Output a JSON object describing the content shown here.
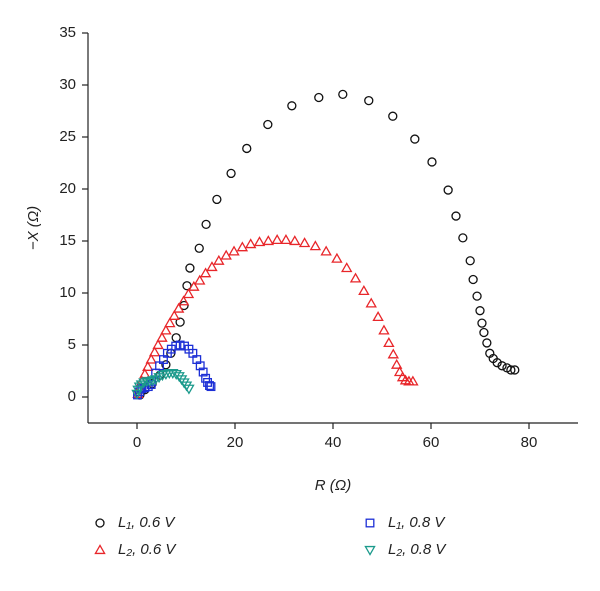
{
  "chart_data": {
    "type": "scatter",
    "xlabel": "R (Ω)",
    "ylabel": "−X (Ω)",
    "xlim": [
      -10,
      90
    ],
    "ylim": [
      -2.5,
      35
    ],
    "xticks": [
      0,
      20,
      40,
      60,
      80
    ],
    "yticks": [
      0,
      5,
      10,
      15,
      20,
      25,
      30,
      35
    ],
    "grid": false,
    "legend": "bottom",
    "series": [
      {
        "name": "L₁, 0.6 V",
        "color": "#111111",
        "marker": "circle",
        "x": [
          0.6,
          1.6,
          3.1,
          4.7,
          5.9,
          6.9,
          8.0,
          8.8,
          9.6,
          10.2,
          10.8,
          12.7,
          14.1,
          16.3,
          19.2,
          22.4,
          26.7,
          31.6,
          37.1,
          42.0,
          47.3,
          52.2,
          56.7,
          60.2,
          63.5,
          65.1,
          66.5,
          68.0,
          68.6,
          69.4,
          70.0,
          70.4,
          70.8,
          71.4,
          72.0,
          72.7,
          73.5,
          74.5,
          75.5,
          76.3,
          77.1
        ],
        "values": [
          0.2,
          0.7,
          1.3,
          2.1,
          3.1,
          4.2,
          5.7,
          7.2,
          8.8,
          10.7,
          12.4,
          14.3,
          16.6,
          19.0,
          21.5,
          23.9,
          26.2,
          28.0,
          28.8,
          29.1,
          28.5,
          27.0,
          24.8,
          22.6,
          19.9,
          17.4,
          15.3,
          13.1,
          11.3,
          9.7,
          8.3,
          7.1,
          6.2,
          5.2,
          4.2,
          3.7,
          3.3,
          3.0,
          2.8,
          2.6,
          2.6
        ]
      },
      {
        "name": "L₂, 0.6 V",
        "color": "#e8262a",
        "marker": "triangle-up",
        "x": [
          0.2,
          0.5,
          1,
          1.6,
          2.2,
          2.9,
          3.6,
          4.3,
          5.1,
          5.9,
          6.7,
          7.6,
          8.5,
          9.5,
          10.5,
          11.6,
          12.8,
          14.0,
          15.3,
          16.7,
          18.2,
          19.8,
          21.5,
          23.2,
          25.0,
          26.8,
          28.6,
          30.4,
          32.2,
          34.2,
          36.4,
          38.6,
          40.8,
          42.8,
          44.6,
          46.3,
          47.8,
          49.2,
          50.4,
          51.4,
          52.3,
          53.0,
          53.6,
          54.2,
          54.8,
          55.5,
          56.3
        ],
        "values": [
          0.3,
          0.8,
          1.5,
          2.2,
          2.9,
          3.6,
          4.3,
          5.0,
          5.7,
          6.4,
          7.1,
          7.8,
          8.5,
          9.2,
          9.9,
          10.6,
          11.2,
          11.9,
          12.5,
          13.1,
          13.6,
          14.0,
          14.4,
          14.7,
          14.9,
          15.0,
          15.1,
          15.1,
          15.0,
          14.8,
          14.5,
          14.0,
          13.3,
          12.4,
          11.4,
          10.2,
          9.0,
          7.7,
          6.4,
          5.2,
          4.1,
          3.1,
          2.4,
          1.9,
          1.6,
          1.5,
          1.5
        ]
      },
      {
        "name": "L₁, 0.8 V",
        "color": "#1c2fd6",
        "marker": "square",
        "x": [
          0.1,
          0.5,
          1.0,
          1.6,
          2.3,
          2.9,
          3.0,
          3.8,
          4.6,
          5.4,
          6.2,
          7.0,
          7.9,
          8.8,
          9.7,
          10.6,
          11.4,
          12.2,
          12.9,
          13.5,
          14.0,
          14.4,
          14.8,
          15.1
        ],
        "values": [
          0.2,
          0.5,
          0.8,
          0.9,
          1.0,
          1.2,
          1.5,
          2.3,
          3.0,
          3.6,
          4.2,
          4.6,
          4.9,
          5.0,
          4.9,
          4.6,
          4.2,
          3.6,
          3.0,
          2.4,
          1.8,
          1.4,
          1.1,
          1.0
        ]
      },
      {
        "name": "L₂, 0.8 V",
        "color": "#1b9a8c",
        "marker": "triangle-down",
        "x": [
          0,
          0.2,
          0.5,
          0.9,
          1.4,
          2.0,
          2.6,
          3.2,
          3.8,
          4.5,
          5.2,
          5.9,
          6.6,
          7.3,
          8.0,
          8.6,
          9.1,
          9.6,
          10.1,
          10.6
        ],
        "values": [
          0.3,
          0.7,
          1.0,
          1.2,
          1.4,
          1.5,
          1.5,
          1.6,
          1.7,
          1.9,
          2.1,
          2.2,
          2.3,
          2.3,
          2.2,
          2.0,
          1.7,
          1.4,
          1.1,
          0.8
        ]
      }
    ]
  }
}
